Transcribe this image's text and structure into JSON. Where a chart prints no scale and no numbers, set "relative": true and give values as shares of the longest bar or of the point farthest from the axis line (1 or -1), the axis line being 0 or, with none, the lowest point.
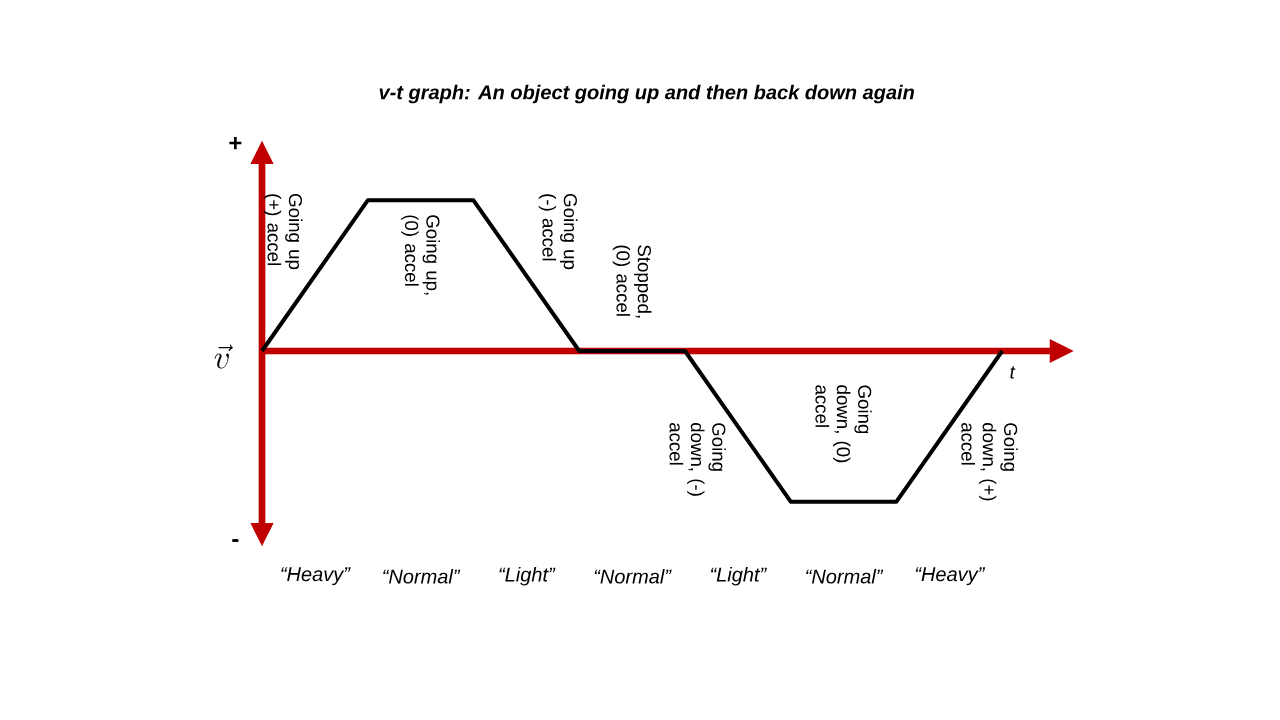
{
  "chart_data": {
    "type": "line",
    "title": "v-t graph: An object going up and then back down again",
    "xlabel": "t",
    "ylabel": "\\vec{v}",
    "relative": true,
    "categories": [
      null,
      null,
      null,
      null,
      null,
      null,
      null,
      null
    ],
    "series": [
      {
        "color": "#000000",
        "values": [
          0,
          1,
          1,
          0,
          0,
          -1,
          -1,
          0
        ]
      }
    ],
    "annotations": [
      "+",
      "-",
      "Going up (+) accel",
      "Going up, (0) accel",
      "Going up (-) accel",
      "Stopped, (0) accel",
      "Going down, (-) accel",
      "Going down, (0) accel",
      "Going down, (+) accel",
      "“Heavy”",
      "“Normal”",
      "“Light”",
      "“Normal”",
      "“Light”",
      "“Normal”",
      "“Heavy”"
    ],
    "ref_lines": [
      {
        "axis": "y",
        "value": 0,
        "color": "#c00000"
      }
    ],
    "marker": "none",
    "line_style": "solid"
  }
}
